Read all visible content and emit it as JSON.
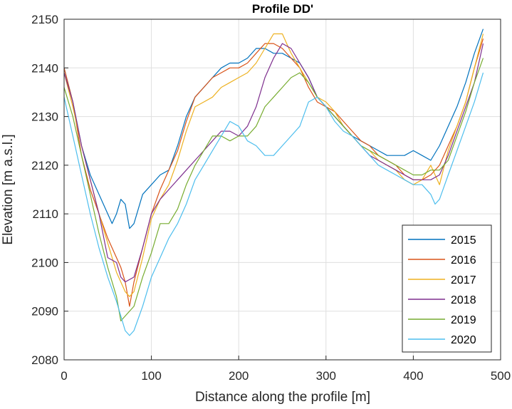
{
  "chart_data": {
    "type": "line",
    "title": "Profile DD'",
    "xlabel": "Distance along the profile [m]",
    "ylabel": "Elevation [m a.s.l.]",
    "xlim": [
      0,
      500
    ],
    "ylim": [
      2080,
      2150
    ],
    "xticks": [
      0,
      100,
      200,
      300,
      400,
      500
    ],
    "yticks": [
      2080,
      2090,
      2100,
      2110,
      2120,
      2130,
      2140,
      2150
    ],
    "grid": true,
    "legend_position": "bottom-right",
    "series": [
      {
        "name": "2015",
        "color": "#0072BD",
        "points": [
          [
            0,
            2140
          ],
          [
            10,
            2133
          ],
          [
            20,
            2124
          ],
          [
            30,
            2118
          ],
          [
            40,
            2114
          ],
          [
            50,
            2110
          ],
          [
            55,
            2108
          ],
          [
            60,
            2110
          ],
          [
            65,
            2113
          ],
          [
            70,
            2112
          ],
          [
            75,
            2107
          ],
          [
            80,
            2108
          ],
          [
            90,
            2114
          ],
          [
            100,
            2116
          ],
          [
            110,
            2118
          ],
          [
            120,
            2119
          ],
          [
            130,
            2124
          ],
          [
            140,
            2130
          ],
          [
            150,
            2134
          ],
          [
            160,
            2136
          ],
          [
            170,
            2138
          ],
          [
            180,
            2140
          ],
          [
            190,
            2141
          ],
          [
            200,
            2141
          ],
          [
            210,
            2142
          ],
          [
            220,
            2144
          ],
          [
            230,
            2144
          ],
          [
            240,
            2143
          ],
          [
            250,
            2143
          ],
          [
            260,
            2142
          ],
          [
            270,
            2141
          ],
          [
            280,
            2138
          ],
          [
            290,
            2134
          ],
          [
            300,
            2132
          ],
          [
            310,
            2130
          ],
          [
            320,
            2128
          ],
          [
            330,
            2126
          ],
          [
            340,
            2125
          ],
          [
            350,
            2124
          ],
          [
            360,
            2123
          ],
          [
            370,
            2122
          ],
          [
            380,
            2122
          ],
          [
            390,
            2122
          ],
          [
            400,
            2123
          ],
          [
            410,
            2122
          ],
          [
            420,
            2121
          ],
          [
            430,
            2124
          ],
          [
            440,
            2128
          ],
          [
            450,
            2132
          ],
          [
            460,
            2137
          ],
          [
            470,
            2143
          ],
          [
            480,
            2148
          ]
        ]
      },
      {
        "name": "2016",
        "color": "#D95319",
        "points": [
          [
            0,
            2140
          ],
          [
            10,
            2133
          ],
          [
            20,
            2122
          ],
          [
            30,
            2115
          ],
          [
            40,
            2110
          ],
          [
            50,
            2105
          ],
          [
            60,
            2101
          ],
          [
            65,
            2099
          ],
          [
            70,
            2096
          ],
          [
            75,
            2091
          ],
          [
            80,
            2096
          ],
          [
            90,
            2103
          ],
          [
            100,
            2110
          ],
          [
            110,
            2115
          ],
          [
            120,
            2119
          ],
          [
            130,
            2123
          ],
          [
            140,
            2129
          ],
          [
            150,
            2134
          ],
          [
            160,
            2136
          ],
          [
            170,
            2138
          ],
          [
            180,
            2139
          ],
          [
            190,
            2140
          ],
          [
            200,
            2140
          ],
          [
            210,
            2141
          ],
          [
            220,
            2143
          ],
          [
            230,
            2145
          ],
          [
            240,
            2145
          ],
          [
            250,
            2144
          ],
          [
            260,
            2142
          ],
          [
            270,
            2140
          ],
          [
            280,
            2136
          ],
          [
            290,
            2133
          ],
          [
            300,
            2132
          ],
          [
            310,
            2131
          ],
          [
            320,
            2129
          ],
          [
            330,
            2127
          ],
          [
            340,
            2125
          ],
          [
            350,
            2124
          ],
          [
            360,
            2122
          ],
          [
            370,
            2121
          ],
          [
            380,
            2120
          ],
          [
            390,
            2118
          ],
          [
            400,
            2117
          ],
          [
            410,
            2117
          ],
          [
            420,
            2118
          ],
          [
            430,
            2120
          ],
          [
            440,
            2124
          ],
          [
            450,
            2128
          ],
          [
            460,
            2133
          ],
          [
            470,
            2140
          ],
          [
            480,
            2146
          ]
        ]
      },
      {
        "name": "2017",
        "color": "#EDB120",
        "points": [
          [
            0,
            2139
          ],
          [
            10,
            2132
          ],
          [
            20,
            2124
          ],
          [
            30,
            2117
          ],
          [
            40,
            2110
          ],
          [
            50,
            2104
          ],
          [
            60,
            2098
          ],
          [
            70,
            2094
          ],
          [
            75,
            2093
          ],
          [
            80,
            2094
          ],
          [
            90,
            2101
          ],
          [
            100,
            2109
          ],
          [
            110,
            2113
          ],
          [
            120,
            2116
          ],
          [
            130,
            2121
          ],
          [
            140,
            2127
          ],
          [
            150,
            2132
          ],
          [
            160,
            2133
          ],
          [
            170,
            2134
          ],
          [
            180,
            2136
          ],
          [
            190,
            2137
          ],
          [
            200,
            2138
          ],
          [
            210,
            2139
          ],
          [
            220,
            2141
          ],
          [
            230,
            2144
          ],
          [
            240,
            2147
          ],
          [
            250,
            2147
          ],
          [
            255,
            2145
          ],
          [
            260,
            2143
          ],
          [
            270,
            2140
          ],
          [
            280,
            2137
          ],
          [
            290,
            2134
          ],
          [
            300,
            2133
          ],
          [
            310,
            2131
          ],
          [
            320,
            2128
          ],
          [
            330,
            2126
          ],
          [
            340,
            2124
          ],
          [
            350,
            2123
          ],
          [
            360,
            2121
          ],
          [
            370,
            2120
          ],
          [
            380,
            2119
          ],
          [
            390,
            2117
          ],
          [
            400,
            2116
          ],
          [
            410,
            2117
          ],
          [
            420,
            2120
          ],
          [
            425,
            2118
          ],
          [
            430,
            2116
          ],
          [
            440,
            2123
          ],
          [
            450,
            2128
          ],
          [
            460,
            2133
          ],
          [
            470,
            2140
          ],
          [
            480,
            2147
          ]
        ]
      },
      {
        "name": "2018",
        "color": "#7E2F8E",
        "points": [
          [
            0,
            2139
          ],
          [
            10,
            2133
          ],
          [
            20,
            2124
          ],
          [
            30,
            2117
          ],
          [
            40,
            2110
          ],
          [
            50,
            2101
          ],
          [
            60,
            2100
          ],
          [
            65,
            2097
          ],
          [
            70,
            2096
          ],
          [
            80,
            2097
          ],
          [
            90,
            2103
          ],
          [
            100,
            2110
          ],
          [
            110,
            2113
          ],
          [
            120,
            2115
          ],
          [
            130,
            2117
          ],
          [
            140,
            2119
          ],
          [
            150,
            2121
          ],
          [
            160,
            2123
          ],
          [
            170,
            2125
          ],
          [
            180,
            2127
          ],
          [
            190,
            2127
          ],
          [
            200,
            2126
          ],
          [
            210,
            2128
          ],
          [
            220,
            2132
          ],
          [
            230,
            2138
          ],
          [
            240,
            2142
          ],
          [
            250,
            2145
          ],
          [
            260,
            2144
          ],
          [
            270,
            2141
          ],
          [
            280,
            2138
          ],
          [
            290,
            2134
          ],
          [
            300,
            2132
          ],
          [
            310,
            2130
          ],
          [
            320,
            2128
          ],
          [
            330,
            2126
          ],
          [
            340,
            2124
          ],
          [
            350,
            2122
          ],
          [
            360,
            2121
          ],
          [
            370,
            2120
          ],
          [
            380,
            2119
          ],
          [
            390,
            2118
          ],
          [
            400,
            2117
          ],
          [
            410,
            2117
          ],
          [
            420,
            2117
          ],
          [
            430,
            2118
          ],
          [
            440,
            2122
          ],
          [
            450,
            2127
          ],
          [
            460,
            2132
          ],
          [
            470,
            2137
          ],
          [
            480,
            2145
          ]
        ]
      },
      {
        "name": "2019",
        "color": "#77AC30",
        "points": [
          [
            0,
            2136
          ],
          [
            10,
            2130
          ],
          [
            20,
            2122
          ],
          [
            30,
            2114
          ],
          [
            40,
            2106
          ],
          [
            50,
            2099
          ],
          [
            60,
            2093
          ],
          [
            65,
            2088
          ],
          [
            70,
            2089
          ],
          [
            80,
            2091
          ],
          [
            90,
            2097
          ],
          [
            100,
            2102
          ],
          [
            110,
            2108
          ],
          [
            120,
            2108
          ],
          [
            130,
            2111
          ],
          [
            140,
            2116
          ],
          [
            150,
            2120
          ],
          [
            160,
            2123
          ],
          [
            170,
            2126
          ],
          [
            180,
            2126
          ],
          [
            190,
            2125
          ],
          [
            200,
            2126
          ],
          [
            210,
            2126
          ],
          [
            220,
            2128
          ],
          [
            230,
            2132
          ],
          [
            240,
            2134
          ],
          [
            250,
            2136
          ],
          [
            260,
            2138
          ],
          [
            270,
            2139
          ],
          [
            280,
            2137
          ],
          [
            290,
            2134
          ],
          [
            300,
            2132
          ],
          [
            310,
            2130
          ],
          [
            320,
            2128
          ],
          [
            330,
            2126
          ],
          [
            340,
            2124
          ],
          [
            350,
            2123
          ],
          [
            360,
            2122
          ],
          [
            370,
            2121
          ],
          [
            380,
            2120
          ],
          [
            390,
            2119
          ],
          [
            400,
            2118
          ],
          [
            410,
            2118
          ],
          [
            420,
            2119
          ],
          [
            430,
            2119
          ],
          [
            440,
            2121
          ],
          [
            450,
            2126
          ],
          [
            460,
            2131
          ],
          [
            470,
            2137
          ],
          [
            480,
            2142
          ]
        ]
      },
      {
        "name": "2020",
        "color": "#4DBEEE",
        "points": [
          [
            0,
            2134
          ],
          [
            10,
            2126
          ],
          [
            20,
            2118
          ],
          [
            30,
            2110
          ],
          [
            40,
            2103
          ],
          [
            50,
            2097
          ],
          [
            60,
            2092
          ],
          [
            70,
            2086
          ],
          [
            75,
            2085
          ],
          [
            80,
            2086
          ],
          [
            90,
            2091
          ],
          [
            100,
            2097
          ],
          [
            110,
            2101
          ],
          [
            120,
            2105
          ],
          [
            130,
            2108
          ],
          [
            140,
            2112
          ],
          [
            150,
            2117
          ],
          [
            160,
            2120
          ],
          [
            170,
            2123
          ],
          [
            180,
            2126
          ],
          [
            190,
            2129
          ],
          [
            200,
            2128
          ],
          [
            210,
            2125
          ],
          [
            220,
            2124
          ],
          [
            230,
            2122
          ],
          [
            240,
            2122
          ],
          [
            250,
            2124
          ],
          [
            260,
            2126
          ],
          [
            270,
            2128
          ],
          [
            280,
            2133
          ],
          [
            290,
            2134
          ],
          [
            300,
            2132
          ],
          [
            310,
            2129
          ],
          [
            320,
            2127
          ],
          [
            330,
            2126
          ],
          [
            340,
            2124
          ],
          [
            350,
            2122
          ],
          [
            360,
            2120
          ],
          [
            370,
            2119
          ],
          [
            380,
            2118
          ],
          [
            390,
            2117
          ],
          [
            400,
            2116
          ],
          [
            410,
            2116
          ],
          [
            420,
            2114
          ],
          [
            425,
            2112
          ],
          [
            430,
            2113
          ],
          [
            440,
            2118
          ],
          [
            450,
            2123
          ],
          [
            460,
            2128
          ],
          [
            470,
            2133
          ],
          [
            480,
            2139
          ]
        ]
      }
    ]
  }
}
